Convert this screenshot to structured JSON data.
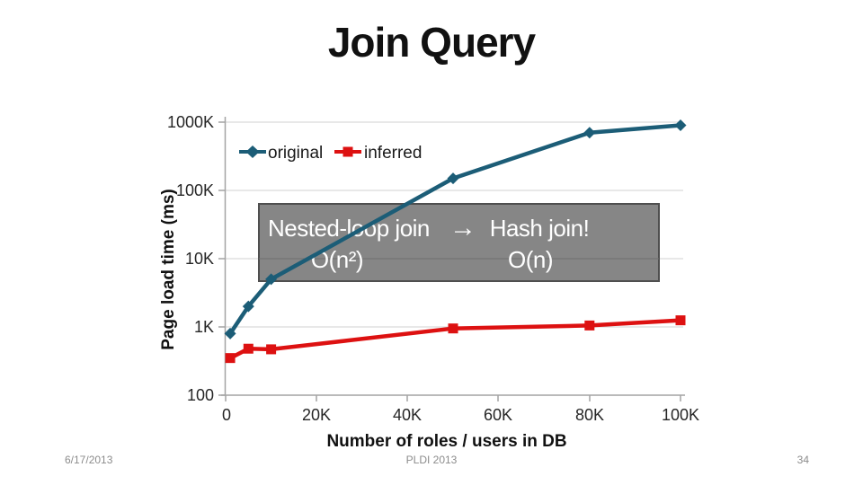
{
  "slide": {
    "title": "Join Query",
    "footer": {
      "date": "6/17/2013",
      "venue": "PLDI 2013",
      "page_number": "34"
    }
  },
  "chart_data": {
    "type": "line",
    "title": "Join Query",
    "xlabel": "Number of roles / users in DB",
    "ylabel": "Page load time (ms)",
    "x_scale": "linear",
    "y_scale": "log",
    "xlim": [
      0,
      100000
    ],
    "ylim": [
      100,
      1000000
    ],
    "grid": "horizontal",
    "legend_position": "top-left-inside",
    "xtick_values": [
      0,
      20000,
      40000,
      60000,
      80000,
      100000
    ],
    "xtick_labels": [
      "0",
      "20K",
      "40K",
      "60K",
      "80K",
      "100K"
    ],
    "ytick_values": [
      1000000,
      100000,
      10000,
      1000,
      100
    ],
    "ytick_labels": [
      "1000K",
      "100K",
      "10K",
      "1K",
      "100"
    ],
    "x": [
      1000,
      5000,
      10000,
      50000,
      80000,
      100000
    ],
    "series": [
      {
        "name": "original",
        "color": "#1c5d77",
        "marker": "diamond",
        "values": [
          800,
          2000,
          5000,
          150000,
          700000,
          900000
        ]
      },
      {
        "name": "inferred",
        "color": "#dd1111",
        "marker": "square",
        "values": [
          350,
          480,
          470,
          950,
          1050,
          1250
        ]
      }
    ],
    "annotation": {
      "left_label": "Nested-loop join",
      "arrow": "→",
      "right_label": "Hash join!",
      "left_sub": "O(n²)",
      "right_sub": "O(n)",
      "box_color": "#868686",
      "text_color": "#ffffff"
    }
  }
}
